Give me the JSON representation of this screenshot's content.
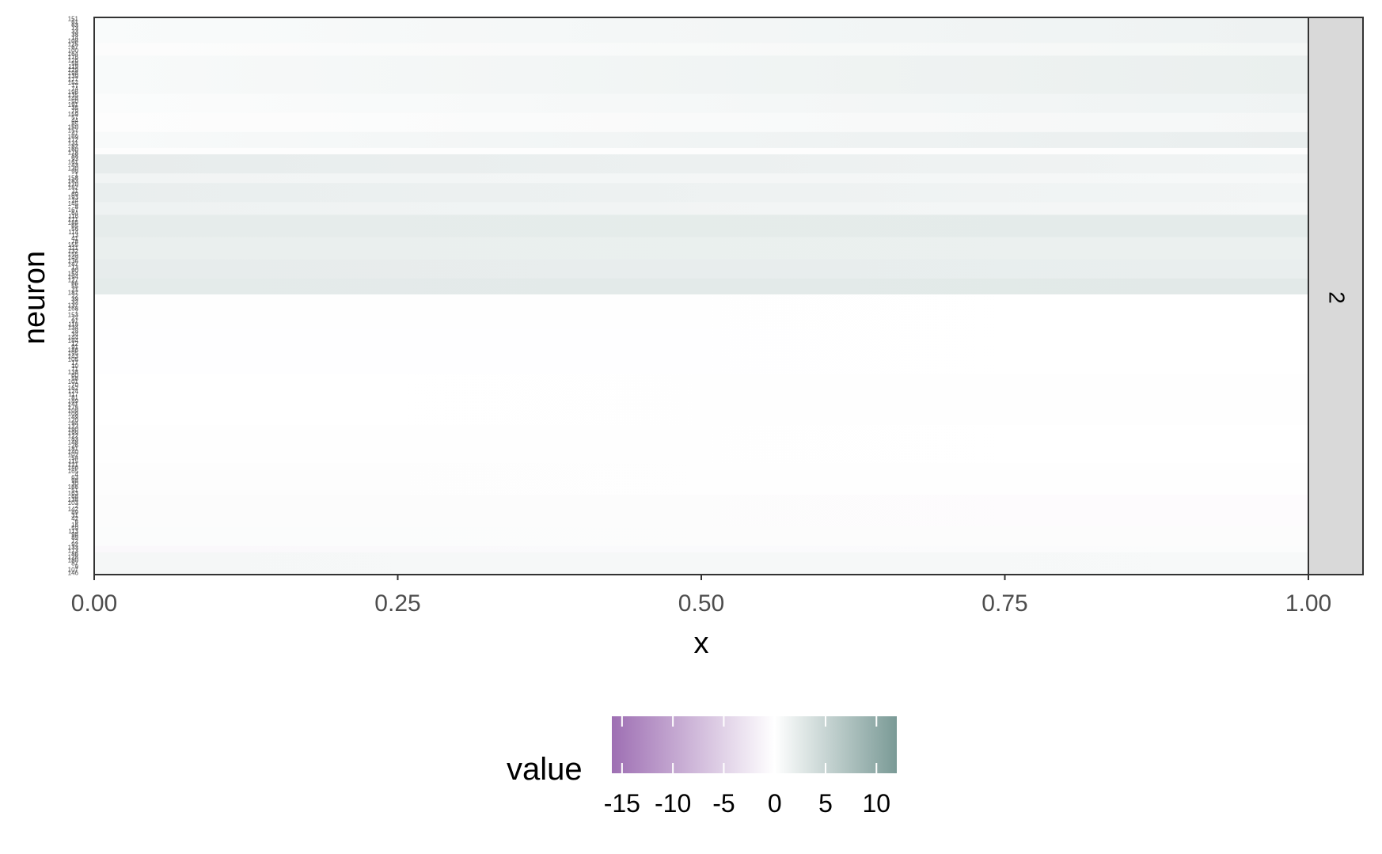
{
  "chart_data": {
    "type": "heatmap",
    "title": "",
    "xlabel": "x",
    "ylabel": "neuron",
    "xlim": [
      0,
      1
    ],
    "x_ticks": [
      {
        "value": 0.0,
        "label": "0.00"
      },
      {
        "value": 0.25,
        "label": "0.25"
      },
      {
        "value": 0.5,
        "label": "0.50"
      },
      {
        "value": 0.75,
        "label": "0.75"
      },
      {
        "value": 1.0,
        "label": "1.00"
      }
    ],
    "facet_label": "2",
    "grid": false,
    "legend": {
      "title": "value",
      "position": "bottom",
      "limits": [
        -16,
        12
      ],
      "breaks": [
        -15,
        -10,
        -5,
        0,
        5,
        10
      ],
      "break_labels": [
        "-15",
        "-10",
        "-5",
        "0",
        "5",
        "10"
      ],
      "colors": {
        "low": "#9e6fb3",
        "mid": "#ffffff",
        "high": "#7a9a96"
      }
    },
    "neurons": [
      "151",
      "61",
      "63",
      "73",
      "33",
      "38",
      "14",
      "108",
      "125",
      "67",
      "100",
      "164",
      "176",
      "126",
      "58",
      "119",
      "129",
      "198",
      "139",
      "177",
      "152",
      "77",
      "74",
      "196",
      "135",
      "148",
      "50",
      "191",
      "35",
      "79",
      "159",
      "57",
      "44",
      "85",
      "150",
      "157",
      "47",
      "169",
      "172",
      "131",
      "82",
      "160",
      "178",
      "88",
      "93",
      "161",
      "43",
      "130",
      "99",
      "1",
      "158",
      "183",
      "170",
      "182",
      "11",
      "69",
      "193",
      "24",
      "145",
      "8",
      "167",
      "64",
      "116",
      "171",
      "185",
      "65",
      "56",
      "114",
      "13",
      "41",
      "78",
      "155",
      "111",
      "132",
      "155",
      "149",
      "136",
      "147",
      "13",
      "90",
      "154",
      "194",
      "127",
      "66",
      "55",
      "21",
      "187",
      "22",
      "39",
      "32",
      "137",
      "168",
      "7",
      "153",
      "27",
      "97",
      "118",
      "134",
      "28",
      "34",
      "144",
      "184",
      "12",
      "91",
      "186",
      "195",
      "143",
      "105",
      "17",
      "10",
      "71",
      "138",
      "60",
      "58",
      "101",
      "70",
      "162",
      "124",
      "117",
      "81",
      "189",
      "141",
      "175",
      "109",
      "109",
      "49",
      "120",
      "94",
      "123",
      "190",
      "199",
      "122",
      "83",
      "148",
      "26",
      "181",
      "140",
      "102",
      "54",
      "115",
      "121",
      "146",
      "165",
      "4",
      "63",
      "98",
      "30",
      "166",
      "51",
      "163",
      "68",
      "138",
      "103",
      "2",
      "142",
      "89",
      "31",
      "42",
      "6",
      "16",
      "59",
      "113",
      "98",
      "89",
      "72",
      "92",
      "133",
      "173",
      "86",
      "128",
      "180",
      "87",
      "9",
      "107",
      "146"
    ],
    "bands": [
      {
        "from": 0,
        "to": 8,
        "left": 0.5,
        "right": 1.5
      },
      {
        "from": 8,
        "to": 12,
        "left": 0.3,
        "right": 1.0
      },
      {
        "from": 12,
        "to": 24,
        "left": 0.6,
        "right": 1.9
      },
      {
        "from": 24,
        "to": 30,
        "left": 0.4,
        "right": 1.4
      },
      {
        "from": 30,
        "to": 36,
        "left": 0.2,
        "right": 0.9
      },
      {
        "from": 36,
        "to": 41,
        "left": 0.6,
        "right": 2.0
      },
      {
        "from": 41,
        "to": 43,
        "left": 0.2,
        "right": 0.2
      },
      {
        "from": 43,
        "to": 49,
        "left": 2.2,
        "right": 1.3
      },
      {
        "from": 49,
        "to": 52,
        "left": 1.3,
        "right": 0.8
      },
      {
        "from": 52,
        "to": 58,
        "left": 2.0,
        "right": 1.2
      },
      {
        "from": 58,
        "to": 62,
        "left": 1.5,
        "right": 0.9
      },
      {
        "from": 62,
        "to": 69,
        "left": 2.3,
        "right": 2.4
      },
      {
        "from": 69,
        "to": 76,
        "left": 1.9,
        "right": 1.8
      },
      {
        "from": 76,
        "to": 82,
        "left": 2.2,
        "right": 2.0
      },
      {
        "from": 82,
        "to": 87,
        "left": 2.4,
        "right": 2.6
      },
      {
        "from": 87,
        "to": 98,
        "left": 0.1,
        "right": 0.0
      },
      {
        "from": 98,
        "to": 112,
        "left": -0.1,
        "right": 0.0
      },
      {
        "from": 112,
        "to": 128,
        "left": 0.0,
        "right": 0.1
      },
      {
        "from": 128,
        "to": 140,
        "left": 0.1,
        "right": 0.0
      },
      {
        "from": 140,
        "to": 150,
        "left": 0.2,
        "right": 0.1
      },
      {
        "from": 150,
        "to": 160,
        "left": 0.3,
        "right": -0.4
      },
      {
        "from": 160,
        "to": 166,
        "left": 0.4,
        "right": 0.3
      },
      {
        "from": 166,
        "to": 168,
        "left": -0.8,
        "right": 0.4
      },
      {
        "from": 168,
        "to": 175,
        "left": 0.9,
        "right": 0.7
      },
      {
        "from": 175,
        "to": 183,
        "left": 0.7,
        "right": 0.0
      }
    ]
  }
}
